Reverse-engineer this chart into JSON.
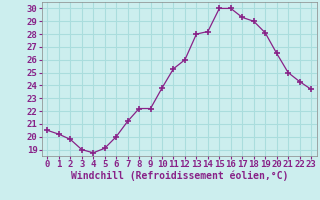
{
  "x": [
    0,
    1,
    2,
    3,
    4,
    5,
    6,
    7,
    8,
    9,
    10,
    11,
    12,
    13,
    14,
    15,
    16,
    17,
    18,
    19,
    20,
    21,
    22,
    23
  ],
  "y": [
    20.5,
    20.2,
    19.8,
    19.0,
    18.75,
    19.1,
    20.0,
    21.2,
    22.2,
    22.2,
    23.8,
    25.3,
    26.0,
    28.0,
    28.2,
    30.0,
    30.0,
    29.3,
    29.0,
    28.1,
    26.5,
    25.0,
    24.3,
    23.7
  ],
  "line_color": "#882288",
  "marker": "+",
  "marker_size": 4,
  "marker_lw": 1.2,
  "bg_color": "#cceeee",
  "grid_color": "#aadddd",
  "xlabel": "Windchill (Refroidissement éolien,°C)",
  "ylabel": "",
  "ylim": [
    18.5,
    30.5
  ],
  "yticks": [
    19,
    20,
    21,
    22,
    23,
    24,
    25,
    26,
    27,
    28,
    29,
    30
  ],
  "xlim": [
    -0.5,
    23.5
  ],
  "xticks": [
    0,
    1,
    2,
    3,
    4,
    5,
    6,
    7,
    8,
    9,
    10,
    11,
    12,
    13,
    14,
    15,
    16,
    17,
    18,
    19,
    20,
    21,
    22,
    23
  ],
  "xlabel_fontsize": 7.0,
  "tick_fontsize": 6.5,
  "line_width": 0.9
}
